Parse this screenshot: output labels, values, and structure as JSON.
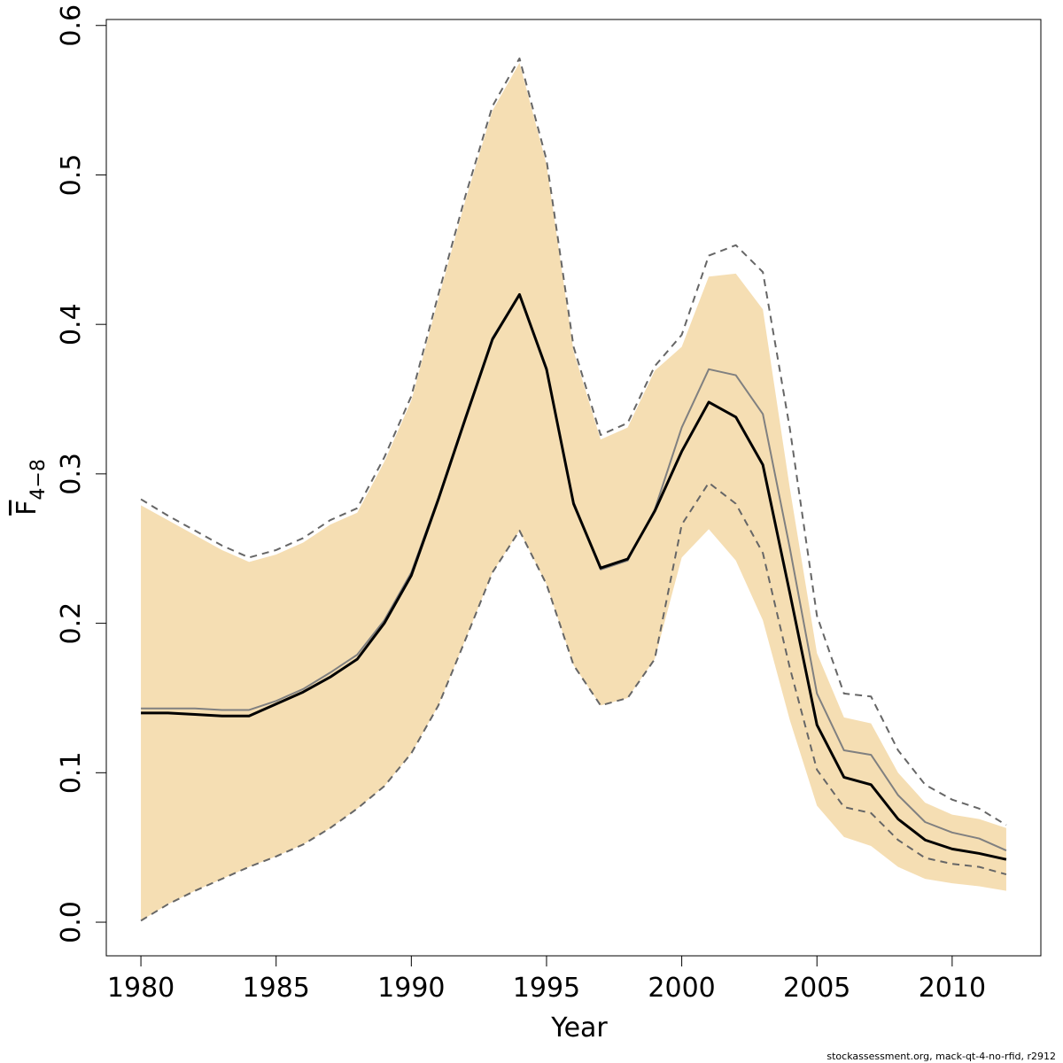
{
  "chart_data": {
    "type": "line",
    "xlabel": "Year",
    "ylabel": {
      "main": "F",
      "subscript": "4−8"
    },
    "footnote": "stockassessment.org, mack-qt-4-no-rfid, r2912",
    "x": [
      1980,
      1981,
      1982,
      1983,
      1984,
      1985,
      1986,
      1987,
      1988,
      1989,
      1990,
      1991,
      1992,
      1993,
      1994,
      1995,
      1996,
      1997,
      1998,
      1999,
      2000,
      2001,
      2002,
      2003,
      2004,
      2005,
      2006,
      2007,
      2008,
      2009,
      2010,
      2011,
      2012
    ],
    "band": {
      "color": "#f5deb3",
      "upper": [
        0.279,
        0.269,
        0.259,
        0.249,
        0.241,
        0.246,
        0.254,
        0.266,
        0.274,
        0.308,
        0.349,
        0.417,
        0.483,
        0.543,
        0.575,
        0.507,
        0.382,
        0.323,
        0.331,
        0.369,
        0.385,
        0.432,
        0.434,
        0.41,
        0.29,
        0.18,
        0.137,
        0.133,
        0.1,
        0.08,
        0.072,
        0.069,
        0.063
      ],
      "lower": [
        0.001,
        0.012,
        0.021,
        0.029,
        0.037,
        0.044,
        0.052,
        0.063,
        0.076,
        0.091,
        0.113,
        0.145,
        0.189,
        0.234,
        0.262,
        0.226,
        0.172,
        0.145,
        0.15,
        0.176,
        0.244,
        0.263,
        0.242,
        0.202,
        0.135,
        0.078,
        0.057,
        0.051,
        0.037,
        0.029,
        0.026,
        0.024,
        0.021
      ]
    },
    "series": [
      {
        "color": "#666666",
        "dashed": true,
        "width": 2,
        "values": [
          0.283,
          0.272,
          0.262,
          0.252,
          0.244,
          0.249,
          0.257,
          0.269,
          0.277,
          0.311,
          0.352,
          0.42,
          0.486,
          0.546,
          0.578,
          0.51,
          0.385,
          0.326,
          0.334,
          0.372,
          0.393,
          0.446,
          0.453,
          0.435,
          0.33,
          0.205,
          0.153,
          0.151,
          0.115,
          0.092,
          0.082,
          0.076,
          0.065
        ]
      },
      {
        "color": "#666666",
        "dashed": true,
        "width": 2,
        "values": [
          0.001,
          0.012,
          0.021,
          0.029,
          0.037,
          0.044,
          0.052,
          0.063,
          0.076,
          0.091,
          0.113,
          0.145,
          0.189,
          0.234,
          0.262,
          0.226,
          0.172,
          0.145,
          0.15,
          0.176,
          0.266,
          0.294,
          0.28,
          0.247,
          0.17,
          0.102,
          0.077,
          0.073,
          0.055,
          0.043,
          0.039,
          0.037,
          0.032
        ]
      },
      {
        "color": "#808080",
        "dashed": false,
        "width": 2,
        "values": [
          0.143,
          0.143,
          0.143,
          0.142,
          0.142,
          0.148,
          0.156,
          0.167,
          0.179,
          0.202,
          0.234,
          0.284,
          0.338,
          0.391,
          0.42,
          0.369,
          0.281,
          0.236,
          0.242,
          0.276,
          0.331,
          0.37,
          0.366,
          0.34,
          0.25,
          0.153,
          0.115,
          0.112,
          0.085,
          0.067,
          0.06,
          0.056,
          0.048
        ]
      },
      {
        "color": "#000000",
        "dashed": false,
        "width": 3,
        "values": [
          0.14,
          0.14,
          0.139,
          0.138,
          0.138,
          0.146,
          0.154,
          0.164,
          0.176,
          0.2,
          0.232,
          0.283,
          0.337,
          0.39,
          0.42,
          0.37,
          0.28,
          0.237,
          0.243,
          0.275,
          0.315,
          0.348,
          0.338,
          0.306,
          0.22,
          0.132,
          0.097,
          0.092,
          0.069,
          0.055,
          0.049,
          0.046,
          0.042
        ]
      }
    ],
    "xlim": [
      1978.72,
      2013.28
    ],
    "ylim": [
      -0.0225,
      0.604
    ],
    "xticks": [
      1980,
      1985,
      1990,
      1995,
      2000,
      2005,
      2010
    ],
    "yticks": [
      {
        "value": 0,
        "label": "0.0"
      },
      0.1,
      0.2,
      0.3,
      0.4,
      0.5,
      0.6
    ]
  }
}
